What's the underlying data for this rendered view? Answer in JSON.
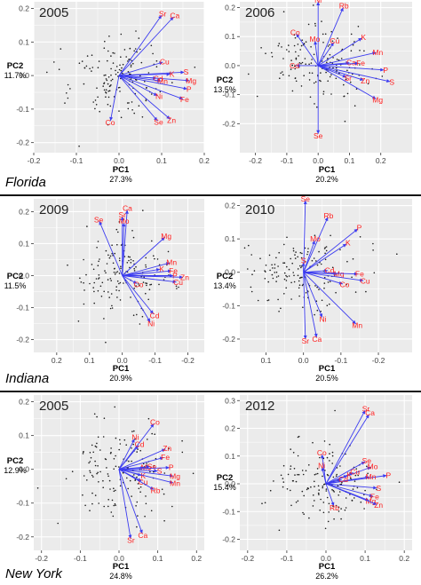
{
  "regions": [
    {
      "name": "Florida"
    },
    {
      "name": "Indiana"
    },
    {
      "name": "New York"
    }
  ],
  "colors": {
    "panel_bg": "#ebebeb",
    "grid": "#ffffff",
    "arrow": "#3b3bf0",
    "element_label": "#ff2020",
    "point": "#1a1a1a"
  },
  "chart_data": [
    {
      "type": "scatter",
      "title": "2005",
      "region": "Florida",
      "xlabel": "PC1",
      "xvar": "27.3%",
      "ylabel": "PC2",
      "yvar": "11.7%",
      "xlim": [
        -0.2,
        0.2
      ],
      "ylim": [
        -0.23,
        0.22
      ],
      "x_reversed": false,
      "xticks": [
        "-0.2",
        "-0.1",
        "0.0",
        "0.1",
        "0.2"
      ],
      "yticks": [
        "0.2",
        "0.1",
        "0.0",
        "-0.1",
        "-0.2"
      ],
      "ytick_values": [
        0.2,
        0.1,
        0.0,
        -0.1,
        -0.2
      ],
      "xtick_values": [
        -0.2,
        -0.1,
        0.0,
        0.1,
        0.2
      ],
      "loadings": [
        {
          "label": "Sr",
          "x": 0.1,
          "y": 0.18
        },
        {
          "label": "Ca",
          "x": 0.128,
          "y": 0.175
        },
        {
          "label": "Cu",
          "x": 0.103,
          "y": 0.04
        },
        {
          "label": "S",
          "x": 0.153,
          "y": 0.01
        },
        {
          "label": "K",
          "x": 0.12,
          "y": 0.004
        },
        {
          "label": "Mg",
          "x": 0.165,
          "y": -0.015
        },
        {
          "label": "Cd",
          "x": 0.088,
          "y": -0.008
        },
        {
          "label": "Mn",
          "x": 0.098,
          "y": -0.016
        },
        {
          "label": "P",
          "x": 0.16,
          "y": -0.04
        },
        {
          "label": "Ni",
          "x": 0.09,
          "y": -0.06
        },
        {
          "label": "Fe",
          "x": 0.15,
          "y": -0.07
        },
        {
          "label": "Co",
          "x": -0.02,
          "y": -0.135
        },
        {
          "label": "Se",
          "x": 0.09,
          "y": -0.135
        },
        {
          "label": "Zn",
          "x": 0.12,
          "y": -0.13
        }
      ]
    },
    {
      "type": "scatter",
      "title": "2006",
      "region": "Florida",
      "xlabel": "PC1",
      "xvar": "20.2%",
      "ylabel": "PC2",
      "yvar": "13.5%",
      "xlim": [
        -0.25,
        0.3
      ],
      "ylim": [
        -0.3,
        0.22
      ],
      "x_reversed": false,
      "xticks": [
        "-0.2",
        "-0.1",
        "0.0",
        "0.1",
        "0.2"
      ],
      "yticks": [
        "0.2",
        "0.1",
        "0.0",
        "-0.1",
        "-0.2"
      ],
      "ytick_values": [
        0.2,
        0.1,
        0.0,
        -0.1,
        -0.2
      ],
      "xtick_values": [
        -0.2,
        -0.1,
        0.0,
        0.1,
        0.2
      ],
      "loadings": [
        {
          "label": "Ni",
          "x": 0.0,
          "y": 0.22
        },
        {
          "label": "Rb",
          "x": 0.08,
          "y": 0.2
        },
        {
          "label": "Co",
          "x": -0.07,
          "y": 0.11
        },
        {
          "label": "Mo",
          "x": -0.01,
          "y": 0.085
        },
        {
          "label": "Cu",
          "x": 0.05,
          "y": 0.08
        },
        {
          "label": "K",
          "x": 0.14,
          "y": 0.095
        },
        {
          "label": "Mn",
          "x": 0.185,
          "y": 0.045
        },
        {
          "label": "Ca",
          "x": 0.1,
          "y": 0.01
        },
        {
          "label": "Fe",
          "x": 0.13,
          "y": 0.008
        },
        {
          "label": "Cd",
          "x": -0.07,
          "y": 0.0
        },
        {
          "label": "P",
          "x": 0.21,
          "y": -0.015
        },
        {
          "label": "Sr",
          "x": 0.09,
          "y": -0.04
        },
        {
          "label": "Zn",
          "x": 0.145,
          "y": -0.05
        },
        {
          "label": "S",
          "x": 0.23,
          "y": -0.055
        },
        {
          "label": "Mg",
          "x": 0.185,
          "y": -0.115
        },
        {
          "label": "Se",
          "x": 0.0,
          "y": -0.235
        }
      ]
    },
    {
      "type": "scatter",
      "title": "2009",
      "region": "Indiana",
      "xlabel": "PC1",
      "xvar": "20.9%",
      "ylabel": "PC2",
      "yvar": "11.5%",
      "xlim": [
        -0.25,
        0.27
      ],
      "ylim": [
        -0.24,
        0.24
      ],
      "x_reversed": true,
      "xticks": [
        "0.2",
        "0.1",
        "0.0",
        "-0.1",
        "-0.2"
      ],
      "yticks": [
        "0.2",
        "0.1",
        "0.0",
        "-0.1",
        "-0.2"
      ],
      "ytick_values": [
        0.2,
        0.1,
        0.0,
        -0.1,
        -0.2
      ],
      "xtick_values": [
        0.2,
        0.1,
        0.0,
        -0.1,
        -0.2
      ],
      "loadings": [
        {
          "label": "Ca",
          "x": -0.015,
          "y": 0.205
        },
        {
          "label": "Se",
          "x": 0.07,
          "y": 0.17
        },
        {
          "label": "Sr",
          "x": 0.0,
          "y": 0.185
        },
        {
          "label": "Mo",
          "x": -0.005,
          "y": 0.165
        },
        {
          "label": "Mg",
          "x": -0.13,
          "y": 0.12
        },
        {
          "label": "Mn",
          "x": -0.145,
          "y": 0.04
        },
        {
          "label": "K",
          "x": -0.115,
          "y": 0.02
        },
        {
          "label": "Fe",
          "x": -0.15,
          "y": 0.015
        },
        {
          "label": "P",
          "x": -0.155,
          "y": 0.0
        },
        {
          "label": "Zn",
          "x": -0.185,
          "y": -0.005
        },
        {
          "label": "Cu",
          "x": -0.165,
          "y": -0.02
        },
        {
          "label": "Co",
          "x": -0.045,
          "y": -0.025
        },
        {
          "label": "Cd",
          "x": -0.095,
          "y": -0.12
        },
        {
          "label": "Ni",
          "x": -0.085,
          "y": -0.145
        }
      ]
    },
    {
      "type": "scatter",
      "title": "2010",
      "region": "Indiana",
      "xlabel": "PC1",
      "xvar": "20.5%",
      "ylabel": "PC2",
      "yvar": "13.4%",
      "xlim": [
        -0.29,
        0.17
      ],
      "ylim": [
        -0.24,
        0.22
      ],
      "x_reversed": true,
      "xticks": [
        "0.1",
        "0.0",
        "-0.1",
        "-0.2"
      ],
      "yticks": [
        "0.2",
        "0.1",
        "0.0",
        "-0.1",
        "-0.2"
      ],
      "ytick_values": [
        0.2,
        0.1,
        0.0,
        -0.1,
        -0.2
      ],
      "xtick_values": [
        0.1,
        0.0,
        -0.1,
        -0.2
      ],
      "loadings": [
        {
          "label": "Se",
          "x": -0.005,
          "y": 0.215
        },
        {
          "label": "Rb",
          "x": -0.065,
          "y": 0.165
        },
        {
          "label": "P",
          "x": -0.145,
          "y": 0.13
        },
        {
          "label": "Mo",
          "x": -0.03,
          "y": 0.095
        },
        {
          "label": "K",
          "x": -0.115,
          "y": 0.085
        },
        {
          "label": "S",
          "x": 0.0,
          "y": 0.03
        },
        {
          "label": "Cd",
          "x": -0.065,
          "y": 0.005
        },
        {
          "label": "Mg",
          "x": -0.09,
          "y": -0.005
        },
        {
          "label": "Fe",
          "x": -0.145,
          "y": -0.005
        },
        {
          "label": "Co",
          "x": -0.105,
          "y": -0.035
        },
        {
          "label": "Cu",
          "x": -0.16,
          "y": -0.025
        },
        {
          "label": "Ni",
          "x": -0.05,
          "y": -0.135
        },
        {
          "label": "Mn",
          "x": -0.14,
          "y": -0.155
        },
        {
          "label": "Sr",
          "x": -0.005,
          "y": -0.2
        },
        {
          "label": "Ca",
          "x": -0.035,
          "y": -0.195
        }
      ]
    },
    {
      "type": "scatter",
      "title": "2005",
      "region": "New York",
      "xlabel": "PC1",
      "xvar": "24.8%",
      "ylabel": "PC2",
      "yvar": "12.9%",
      "xlim": [
        -0.22,
        0.22
      ],
      "ylim": [
        -0.24,
        0.22
      ],
      "x_reversed": false,
      "xticks": [
        "-0.2",
        "-0.1",
        "0.0",
        "0.1",
        "0.2"
      ],
      "yticks": [
        "0.2",
        "0.1",
        "0.0",
        "-0.1",
        "-0.2"
      ],
      "ytick_values": [
        0.2,
        0.1,
        0.0,
        -0.1,
        -0.2
      ],
      "xtick_values": [
        -0.2,
        -0.1,
        0.0,
        0.1,
        0.2
      ],
      "loadings": [
        {
          "label": "Co",
          "x": 0.09,
          "y": 0.135
        },
        {
          "label": "Ni",
          "x": 0.04,
          "y": 0.09
        },
        {
          "label": "Cd",
          "x": 0.05,
          "y": 0.07
        },
        {
          "label": "Zn",
          "x": 0.12,
          "y": 0.06
        },
        {
          "label": "Fe",
          "x": 0.115,
          "y": 0.035
        },
        {
          "label": "Mo",
          "x": 0.065,
          "y": 0.005
        },
        {
          "label": "Se",
          "x": 0.08,
          "y": 0.008
        },
        {
          "label": "P",
          "x": 0.13,
          "y": 0.005
        },
        {
          "label": "S",
          "x": 0.1,
          "y": -0.005
        },
        {
          "label": "Mg",
          "x": 0.14,
          "y": -0.02
        },
        {
          "label": "K",
          "x": 0.058,
          "y": -0.018
        },
        {
          "label": "Cu",
          "x": 0.058,
          "y": -0.035
        },
        {
          "label": "Mn",
          "x": 0.14,
          "y": -0.04
        },
        {
          "label": "Rb",
          "x": 0.09,
          "y": -0.06
        },
        {
          "label": "Sr",
          "x": 0.03,
          "y": -0.205
        },
        {
          "label": "Ca",
          "x": 0.06,
          "y": -0.19
        }
      ]
    },
    {
      "type": "scatter",
      "title": "2012",
      "region": "New York",
      "xlabel": "PC1",
      "xvar": "26.2%",
      "ylabel": "PC2",
      "yvar": "15.4%",
      "xlim": [
        -0.22,
        0.22
      ],
      "ylim": [
        -0.24,
        0.32
      ],
      "x_reversed": false,
      "xticks": [
        "-0.2",
        "-0.1",
        "0.0",
        "0.1",
        "0.2"
      ],
      "yticks": [
        "0.3",
        "0.2",
        "0.1",
        "0.0",
        "-0.1",
        "-0.2"
      ],
      "ytick_values": [
        0.3,
        0.2,
        0.1,
        0.0,
        -0.1,
        -0.2
      ],
      "xtick_values": [
        -0.2,
        -0.1,
        0.0,
        0.1,
        0.2
      ],
      "loadings": [
        {
          "label": "Sr",
          "x": 0.1,
          "y": 0.265
        },
        {
          "label": "Ca",
          "x": 0.11,
          "y": 0.25
        },
        {
          "label": "Co",
          "x": -0.01,
          "y": 0.105
        },
        {
          "label": "Se",
          "x": 0.1,
          "y": 0.08
        },
        {
          "label": "Ni",
          "x": -0.01,
          "y": 0.06
        },
        {
          "label": "Mo",
          "x": 0.115,
          "y": 0.06
        },
        {
          "label": "Cu",
          "x": 0.07,
          "y": 0.04
        },
        {
          "label": "K",
          "x": 0.055,
          "y": 0.03
        },
        {
          "label": "P",
          "x": 0.155,
          "y": 0.03
        },
        {
          "label": "Mn",
          "x": 0.11,
          "y": 0.025
        },
        {
          "label": "Cd",
          "x": 0.04,
          "y": 0.015
        },
        {
          "label": "S",
          "x": 0.13,
          "y": -0.015
        },
        {
          "label": "Fe",
          "x": 0.12,
          "y": -0.045
        },
        {
          "label": "Rb",
          "x": 0.02,
          "y": -0.08
        },
        {
          "label": "Mg",
          "x": 0.11,
          "y": -0.06
        },
        {
          "label": "Zn",
          "x": 0.13,
          "y": -0.075
        }
      ]
    }
  ]
}
